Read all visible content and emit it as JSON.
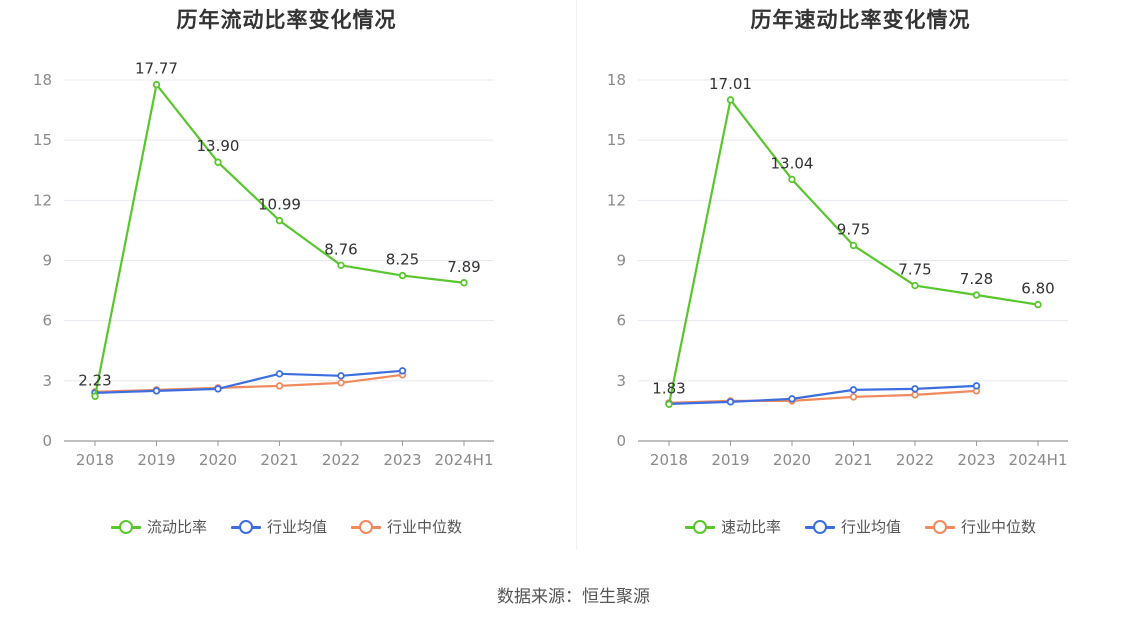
{
  "source_text": "数据来源：恒生聚源",
  "chart_data": [
    {
      "type": "line",
      "title": "历年流动比率变化情况",
      "categories": [
        "2018",
        "2019",
        "2020",
        "2021",
        "2022",
        "2023",
        "2024H1"
      ],
      "ylim": [
        0,
        18
      ],
      "yticks": [
        0,
        3,
        6,
        9,
        12,
        15,
        18
      ],
      "grid": true,
      "legend_position": "bottom",
      "series": [
        {
          "name": "流动比率",
          "color": "#5ac62e",
          "values": [
            2.23,
            17.77,
            13.9,
            10.99,
            8.76,
            8.25,
            7.89
          ],
          "labels": [
            "2.23",
            "17.77",
            "13.90",
            "10.99",
            "8.76",
            "8.25",
            "7.89"
          ]
        },
        {
          "name": "行业均值",
          "color": "#3d6ee0",
          "values": [
            2.4,
            2.5,
            2.6,
            3.35,
            3.25,
            3.5,
            null
          ]
        },
        {
          "name": "行业中位数",
          "color": "#f08a5d",
          "values": [
            2.45,
            2.55,
            2.65,
            2.75,
            2.9,
            3.3,
            null
          ]
        }
      ]
    },
    {
      "type": "line",
      "title": "历年速动比率变化情况",
      "categories": [
        "2018",
        "2019",
        "2020",
        "2021",
        "2022",
        "2023",
        "2024H1"
      ],
      "ylim": [
        0,
        18
      ],
      "yticks": [
        0,
        3,
        6,
        9,
        12,
        15,
        18
      ],
      "grid": true,
      "legend_position": "bottom",
      "series": [
        {
          "name": "速动比率",
          "color": "#5ac62e",
          "values": [
            1.83,
            17.01,
            13.04,
            9.75,
            7.75,
            7.28,
            6.8
          ],
          "labels": [
            "1.83",
            "17.01",
            "13.04",
            "9.75",
            "7.75",
            "7.28",
            "6.80"
          ]
        },
        {
          "name": "行业均值",
          "color": "#3d6ee0",
          "values": [
            1.85,
            1.95,
            2.1,
            2.55,
            2.6,
            2.75,
            null
          ]
        },
        {
          "name": "行业中位数",
          "color": "#f08a5d",
          "values": [
            1.9,
            2.0,
            2.0,
            2.2,
            2.3,
            2.5,
            null
          ]
        }
      ]
    }
  ]
}
